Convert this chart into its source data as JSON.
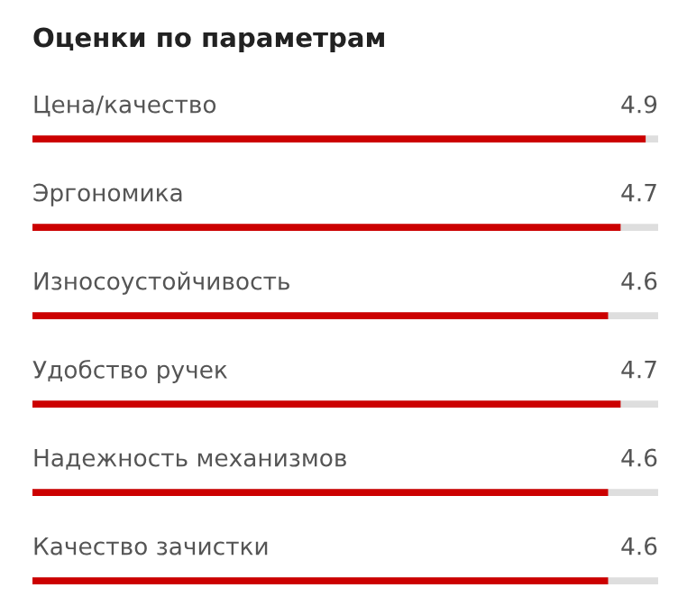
{
  "chart_data": {
    "type": "bar",
    "orientation": "horizontal",
    "title": "Оценки по параметрам",
    "categories": [
      "Цена/качество",
      "Эргономика",
      "Износоустойчивость",
      "Удобство ручек",
      "Надежность механизмов",
      "Качество зачистки"
    ],
    "values": [
      4.9,
      4.7,
      4.6,
      4.7,
      4.6,
      4.6
    ],
    "color": "#cc0000",
    "xlim": [
      0,
      5
    ],
    "data_labels": true
  }
}
